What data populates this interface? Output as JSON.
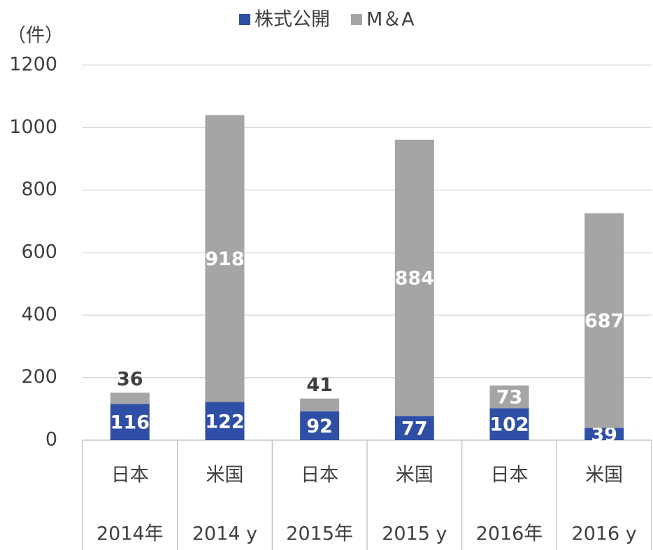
{
  "chart_data": {
    "type": "stacked_bar",
    "y_axis_label": "（件）",
    "categories": [
      "日本",
      "米国",
      "日本",
      "米国",
      "日本",
      "米国"
    ],
    "category_groups": [
      "2014年",
      "2014 y",
      "2015年",
      "2015 y",
      "2016年",
      "2016 y"
    ],
    "series": [
      {
        "name": "株式公開",
        "color": "#2f4ea6",
        "values": [
          116,
          122,
          92,
          77,
          102,
          39
        ]
      },
      {
        "name": "M＆A",
        "color": "#a5a5a5",
        "values": [
          36,
          918,
          41,
          884,
          73,
          687
        ]
      }
    ],
    "ylim": [
      0,
      1200
    ],
    "yticks": [
      0,
      200,
      400,
      600,
      800,
      1000,
      1200
    ],
    "grid": true,
    "legend": "top"
  }
}
